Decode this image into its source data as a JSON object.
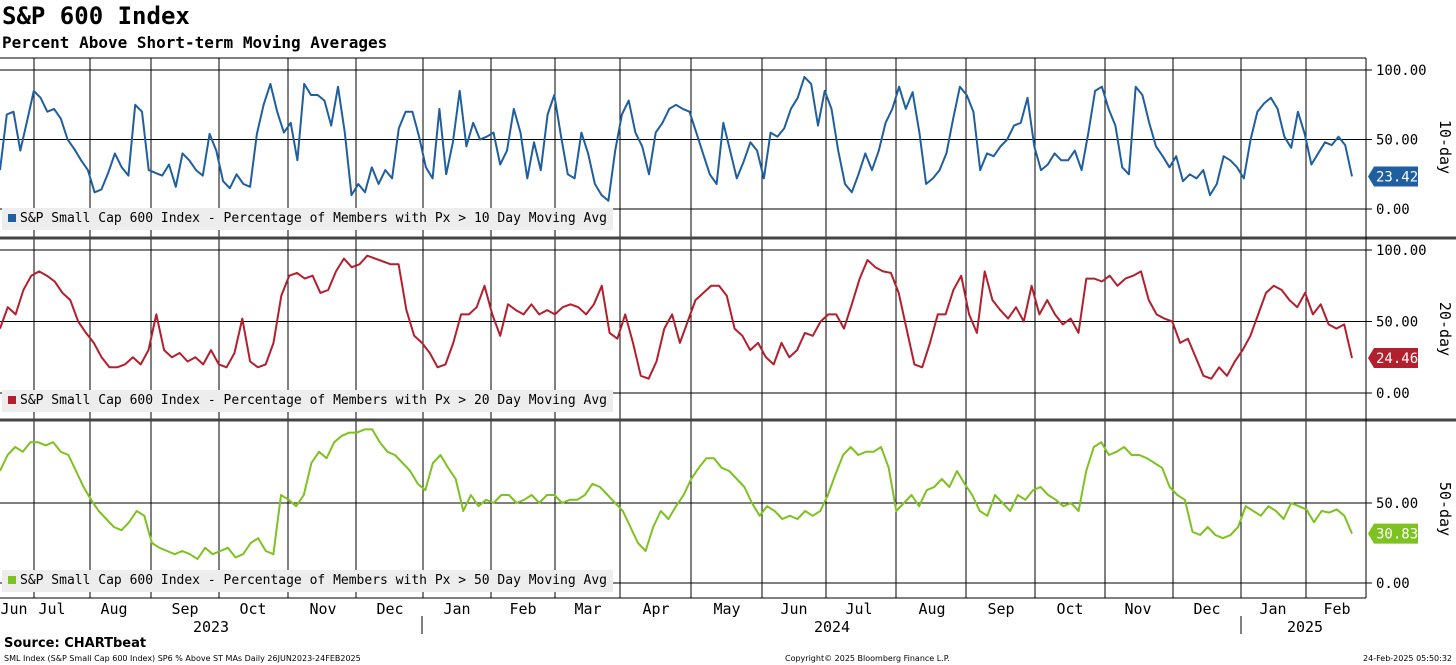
{
  "title": "S&P 600 Index",
  "subtitle": "Percent Above Short-term Moving Averages",
  "source": "Source: CHARTbeat",
  "footer": {
    "left": "SML Index (S&P Small Cap 600 Index) SP6 % Above ST MAs  Daily 26JUN2023-24FEB2025",
    "center": "Copyright© 2025 Bloomberg Finance L.P.",
    "right": "24-Feb-2025 05:50:32"
  },
  "chart_data": {
    "type": "line",
    "x_range": [
      "2023-06-26",
      "2025-02-24"
    ],
    "month_labels": [
      "Jun",
      "Jul",
      "Aug",
      "Sep",
      "Oct",
      "Nov",
      "Dec",
      "Jan",
      "Feb",
      "Mar",
      "Apr",
      "May",
      "Jun",
      "Jul",
      "Aug",
      "Sep",
      "Oct",
      "Nov",
      "Dec",
      "Jan",
      "Feb"
    ],
    "year_labels": [
      "2023",
      "2024",
      "2025"
    ],
    "grid": true,
    "panels": [
      {
        "axis_label": "10-day",
        "yticks": [
          "100.00",
          "50.00",
          "0.00"
        ],
        "ylim": [
          0,
          100
        ],
        "color": "#1f5fa0",
        "last_value": "23.42",
        "legend": "S&P Small Cap 600 Index - Percentage of Members with Px > 10 Day Moving Avg",
        "values": [
          28,
          68,
          70,
          42,
          63,
          85,
          80,
          70,
          72,
          65,
          50,
          43,
          35,
          28,
          12,
          14,
          26,
          40,
          30,
          24,
          75,
          70,
          28,
          26,
          24,
          32,
          16,
          40,
          35,
          28,
          24,
          54,
          42,
          20,
          15,
          25,
          18,
          16,
          54,
          75,
          90,
          70,
          55,
          62,
          35,
          90,
          82,
          82,
          78,
          60,
          88,
          55,
          10,
          18,
          12,
          30,
          18,
          28,
          22,
          58,
          70,
          70,
          52,
          30,
          22,
          72,
          25,
          48,
          85,
          45,
          62,
          50,
          52,
          55,
          32,
          42,
          72,
          55,
          22,
          48,
          28,
          68,
          82,
          52,
          25,
          22,
          55,
          40,
          18,
          10,
          6,
          42,
          68,
          78,
          55,
          45,
          25,
          55,
          62,
          72,
          75,
          72,
          70,
          55,
          40,
          25,
          18,
          62,
          42,
          22,
          34,
          48,
          42,
          22,
          55,
          52,
          58,
          72,
          80,
          95,
          90,
          60,
          85,
          72,
          42,
          18,
          12,
          25,
          40,
          28,
          42,
          62,
          72,
          88,
          72,
          84,
          55,
          18,
          22,
          28,
          40,
          65,
          88,
          82,
          70,
          28,
          40,
          38,
          45,
          50,
          60,
          62,
          80,
          45,
          28,
          32,
          40,
          35,
          35,
          42,
          28,
          55,
          85,
          88,
          72,
          60,
          30,
          25,
          88,
          82,
          62,
          45,
          38,
          30,
          38,
          20,
          25,
          22,
          28,
          10,
          18,
          38,
          35,
          30,
          22,
          50,
          70,
          76,
          80,
          72,
          52,
          44,
          70,
          54,
          32,
          40,
          48,
          46,
          52,
          46,
          23.42
        ]
      },
      {
        "axis_label": "20-day",
        "yticks": [
          "100.00",
          "50.00",
          "0.00"
        ],
        "ylim": [
          0,
          100
        ],
        "color": "#b41f2e",
        "last_value": "24.46",
        "legend": "S&P Small Cap 600 Index - Percentage of Members with Px > 20 Day Moving Avg",
        "values": [
          45,
          60,
          55,
          72,
          82,
          85,
          82,
          78,
          70,
          65,
          50,
          42,
          35,
          25,
          18,
          18,
          20,
          25,
          20,
          30,
          55,
          30,
          25,
          28,
          22,
          25,
          20,
          30,
          20,
          18,
          28,
          52,
          22,
          18,
          20,
          35,
          68,
          82,
          84,
          80,
          82,
          70,
          72,
          85,
          94,
          88,
          90,
          96,
          94,
          92,
          90,
          90,
          58,
          40,
          35,
          28,
          18,
          20,
          35,
          55,
          55,
          60,
          75,
          55,
          40,
          62,
          58,
          55,
          62,
          55,
          58,
          55,
          60,
          62,
          60,
          55,
          62,
          75,
          42,
          38,
          55,
          35,
          12,
          10,
          22,
          45,
          55,
          35,
          50,
          65,
          70,
          75,
          75,
          68,
          45,
          40,
          30,
          35,
          25,
          20,
          35,
          25,
          30,
          42,
          40,
          50,
          55,
          55,
          45,
          62,
          80,
          93,
          88,
          85,
          84,
          70,
          45,
          20,
          18,
          35,
          55,
          55,
          72,
          82,
          55,
          42,
          85,
          65,
          58,
          52,
          60,
          50,
          75,
          55,
          65,
          55,
          48,
          52,
          42,
          80,
          80,
          78,
          82,
          75,
          80,
          82,
          85,
          65,
          55,
          52,
          50,
          35,
          38,
          25,
          12,
          10,
          18,
          12,
          22,
          30,
          40,
          55,
          70,
          75,
          72,
          65,
          60,
          70,
          55,
          62,
          48,
          45,
          48,
          24.46
        ]
      },
      {
        "axis_label": "50-day",
        "yticks": [
          "50.00",
          "0.00"
        ],
        "ylim": [
          0,
          100
        ],
        "color": "#7dc21f",
        "last_value": "30.83",
        "legend": "S&P Small Cap 600 Index - Percentage of Members with Px > 50 Day Moving Avg",
        "values": [
          70,
          80,
          85,
          82,
          88,
          88,
          86,
          88,
          82,
          80,
          70,
          60,
          52,
          45,
          40,
          35,
          33,
          38,
          45,
          42,
          25,
          22,
          20,
          18,
          20,
          18,
          15,
          22,
          18,
          20,
          22,
          16,
          18,
          25,
          28,
          20,
          18,
          55,
          52,
          48,
          55,
          75,
          82,
          78,
          88,
          92,
          94,
          94,
          96,
          96,
          88,
          82,
          80,
          75,
          70,
          62,
          58,
          75,
          80,
          72,
          65,
          45,
          55,
          48,
          52,
          50,
          55,
          55,
          50,
          52,
          55,
          50,
          55,
          55,
          50,
          52,
          52,
          55,
          62,
          60,
          55,
          50,
          45,
          35,
          25,
          20,
          35,
          45,
          40,
          48,
          55,
          65,
          72,
          78,
          78,
          72,
          70,
          65,
          60,
          50,
          42,
          48,
          45,
          40,
          42,
          40,
          45,
          42,
          45,
          55,
          68,
          80,
          85,
          80,
          82,
          82,
          85,
          72,
          45,
          50,
          55,
          48,
          58,
          60,
          65,
          60,
          70,
          62,
          55,
          45,
          42,
          55,
          50,
          45,
          55,
          52,
          58,
          60,
          55,
          52,
          48,
          50,
          45,
          70,
          85,
          88,
          80,
          82,
          85,
          80,
          80,
          78,
          75,
          72,
          60,
          55,
          52,
          32,
          30,
          35,
          30,
          28,
          30,
          35,
          48,
          45,
          42,
          48,
          45,
          40,
          50,
          48,
          46,
          38,
          45,
          44,
          46,
          42,
          30.83
        ]
      }
    ]
  }
}
